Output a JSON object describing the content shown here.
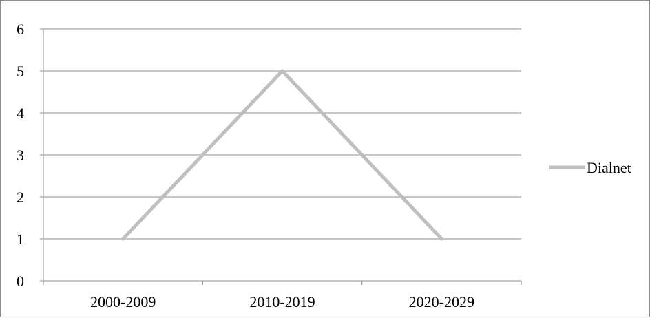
{
  "chart_data": {
    "type": "line",
    "categories": [
      "2000-2009",
      "2010-2019",
      "2020-2029"
    ],
    "series": [
      {
        "name": "Dialnet",
        "values": [
          1,
          5,
          1
        ],
        "color": "#bfbfbf"
      }
    ],
    "ylim": [
      0,
      6
    ],
    "yticks": [
      "0",
      "1",
      "2",
      "3",
      "4",
      "5",
      "6"
    ],
    "grid": true,
    "legend_position": "right",
    "colors": {
      "grid": "#8c8c8c",
      "axis": "#8c8c8c"
    }
  }
}
